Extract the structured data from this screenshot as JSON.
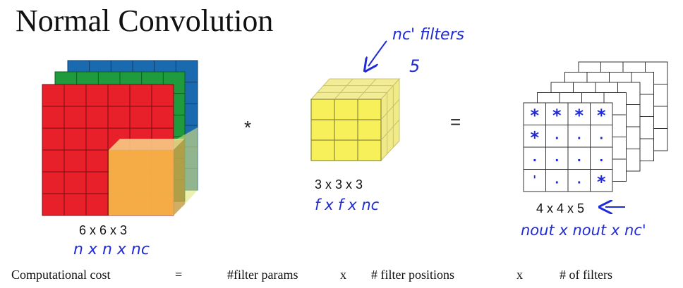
{
  "title": "Normal Convolution",
  "operators": {
    "convolve": "*",
    "equals": "="
  },
  "input_volume": {
    "label": "6 x 6 x 3",
    "annotation": "n x n x nc",
    "colors": {
      "front": "#e8202a",
      "middle": "#1f9a3c",
      "back": "#1a6ab0",
      "highlight": "#f5b84a"
    }
  },
  "filter_volume": {
    "label": "3 x 3 x 3",
    "annotation": "f x f x nc",
    "note_filters": "nc' filters",
    "note_count": "5",
    "color": "#f7f05a"
  },
  "output_volume": {
    "label": "4 x 4 x 5",
    "annotation": "nout x nout x nc'",
    "cell_marks": [
      "*",
      "*",
      "*",
      "*",
      "*",
      ".",
      ".",
      ".",
      ".",
      ".",
      ".",
      ".",
      "'",
      ".",
      ".",
      "*"
    ]
  },
  "cost": {
    "label": "Computational cost",
    "equals": "=",
    "term1": "#filter params",
    "times1": "x",
    "term2": "# filter positions",
    "times2": "x",
    "term3": "# of filters"
  },
  "ink_color": "#1f2bd8"
}
